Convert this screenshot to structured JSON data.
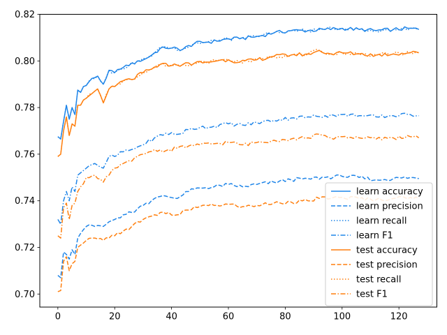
{
  "chart_data": {
    "type": "line",
    "title": "",
    "xlabel": "",
    "ylabel": "",
    "xlim": [
      -6.35,
      133.35
    ],
    "ylim": [
      0.6944,
      0.82
    ],
    "xticks": [
      0,
      20,
      40,
      60,
      80,
      100,
      120
    ],
    "yticks": [
      0.7,
      0.72,
      0.74,
      0.76,
      0.78,
      0.8,
      0.82
    ],
    "ytick_labels": [
      "0.70",
      "0.72",
      "0.74",
      "0.76",
      "0.78",
      "0.80",
      "0.82"
    ],
    "grid": false,
    "legend_position": "lower-right",
    "x_start": 0,
    "x_end": 127,
    "series": [
      {
        "name": "learn accuracy",
        "color": "#1f85e8",
        "dash": "solid",
        "anchors": [
          [
            0,
            0.7675
          ],
          [
            1,
            0.7665
          ],
          [
            2,
            0.774
          ],
          [
            3,
            0.781
          ],
          [
            4,
            0.775
          ],
          [
            5,
            0.78
          ],
          [
            6,
            0.777
          ],
          [
            7,
            0.7875
          ],
          [
            8,
            0.7865
          ],
          [
            9,
            0.789
          ],
          [
            10,
            0.7895
          ],
          [
            12,
            0.7925
          ],
          [
            14,
            0.7935
          ],
          [
            16,
            0.79
          ],
          [
            18,
            0.796
          ],
          [
            20,
            0.795
          ],
          [
            22,
            0.7965
          ],
          [
            25,
            0.798
          ],
          [
            28,
            0.8
          ],
          [
            31,
            0.801
          ],
          [
            34,
            0.8035
          ],
          [
            37,
            0.806
          ],
          [
            40,
            0.8055
          ],
          [
            44,
            0.805
          ],
          [
            48,
            0.8075
          ],
          [
            52,
            0.808
          ],
          [
            56,
            0.8085
          ],
          [
            60,
            0.8095
          ],
          [
            64,
            0.8095
          ],
          [
            70,
            0.8105
          ],
          [
            76,
            0.812
          ],
          [
            82,
            0.813
          ],
          [
            88,
            0.813
          ],
          [
            94,
            0.8135
          ],
          [
            100,
            0.814
          ],
          [
            106,
            0.8135
          ],
          [
            112,
            0.813
          ],
          [
            118,
            0.8135
          ],
          [
            124,
            0.814
          ],
          [
            127,
            0.8135
          ]
        ]
      },
      {
        "name": "learn precision",
        "color": "#1f85e8",
        "dash": "dashed",
        "anchors": [
          [
            0,
            0.708
          ],
          [
            1,
            0.707
          ],
          [
            2,
            0.718
          ],
          [
            3,
            0.717
          ],
          [
            4,
            0.715
          ],
          [
            5,
            0.719
          ],
          [
            6,
            0.717
          ],
          [
            7,
            0.724
          ],
          [
            8,
            0.726
          ],
          [
            10,
            0.729
          ],
          [
            13,
            0.729
          ],
          [
            16,
            0.729
          ],
          [
            18,
            0.731
          ],
          [
            20,
            0.732
          ],
          [
            23,
            0.734
          ],
          [
            26,
            0.735
          ],
          [
            30,
            0.738
          ],
          [
            34,
            0.741
          ],
          [
            38,
            0.742
          ],
          [
            42,
            0.741
          ],
          [
            46,
            0.744
          ],
          [
            50,
            0.7455
          ],
          [
            55,
            0.746
          ],
          [
            60,
            0.747
          ],
          [
            65,
            0.746
          ],
          [
            70,
            0.747
          ],
          [
            76,
            0.748
          ],
          [
            82,
            0.749
          ],
          [
            88,
            0.7495
          ],
          [
            94,
            0.75
          ],
          [
            100,
            0.7505
          ],
          [
            106,
            0.75
          ],
          [
            112,
            0.749
          ],
          [
            118,
            0.7495
          ],
          [
            124,
            0.75
          ],
          [
            127,
            0.7495
          ]
        ]
      },
      {
        "name": "learn recall",
        "color": "#1f85e8",
        "dash": "dotted",
        "anchors": [
          [
            0,
            0.7675
          ],
          [
            1,
            0.7665
          ],
          [
            2,
            0.774
          ],
          [
            3,
            0.781
          ],
          [
            4,
            0.775
          ],
          [
            5,
            0.78
          ],
          [
            6,
            0.777
          ],
          [
            7,
            0.7875
          ],
          [
            8,
            0.7865
          ],
          [
            9,
            0.789
          ],
          [
            10,
            0.7895
          ],
          [
            12,
            0.7925
          ],
          [
            14,
            0.7935
          ],
          [
            16,
            0.79
          ],
          [
            18,
            0.796
          ],
          [
            20,
            0.795
          ],
          [
            22,
            0.7965
          ],
          [
            25,
            0.798
          ],
          [
            28,
            0.8
          ],
          [
            31,
            0.801
          ],
          [
            34,
            0.8035
          ],
          [
            37,
            0.806
          ],
          [
            40,
            0.8055
          ],
          [
            44,
            0.805
          ],
          [
            48,
            0.8075
          ],
          [
            52,
            0.808
          ],
          [
            56,
            0.8085
          ],
          [
            60,
            0.8095
          ],
          [
            64,
            0.8095
          ],
          [
            70,
            0.8105
          ],
          [
            76,
            0.812
          ],
          [
            82,
            0.813
          ],
          [
            88,
            0.813
          ],
          [
            94,
            0.8135
          ],
          [
            100,
            0.814
          ],
          [
            106,
            0.8135
          ],
          [
            112,
            0.813
          ],
          [
            118,
            0.8135
          ],
          [
            124,
            0.814
          ],
          [
            127,
            0.8135
          ]
        ]
      },
      {
        "name": "learn F1",
        "color": "#1f85e8",
        "dash": "dashdot",
        "anchors": [
          [
            0,
            0.732
          ],
          [
            1,
            0.73
          ],
          [
            2,
            0.74
          ],
          [
            3,
            0.744
          ],
          [
            4,
            0.74
          ],
          [
            5,
            0.746
          ],
          [
            6,
            0.744
          ],
          [
            7,
            0.751
          ],
          [
            8,
            0.752
          ],
          [
            10,
            0.754
          ],
          [
            13,
            0.756
          ],
          [
            16,
            0.754
          ],
          [
            18,
            0.759
          ],
          [
            20,
            0.759
          ],
          [
            23,
            0.761
          ],
          [
            26,
            0.762
          ],
          [
            30,
            0.764
          ],
          [
            34,
            0.767
          ],
          [
            38,
            0.769
          ],
          [
            42,
            0.7685
          ],
          [
            46,
            0.7705
          ],
          [
            50,
            0.7715
          ],
          [
            55,
            0.772
          ],
          [
            60,
            0.773
          ],
          [
            65,
            0.7725
          ],
          [
            70,
            0.7735
          ],
          [
            76,
            0.7745
          ],
          [
            82,
            0.7755
          ],
          [
            88,
            0.776
          ],
          [
            94,
            0.7765
          ],
          [
            100,
            0.777
          ],
          [
            106,
            0.7765
          ],
          [
            112,
            0.776
          ],
          [
            118,
            0.7765
          ],
          [
            124,
            0.777
          ],
          [
            127,
            0.7765
          ]
        ]
      },
      {
        "name": "test accuracy",
        "color": "#ff7f0e",
        "dash": "solid",
        "anchors": [
          [
            0,
            0.759
          ],
          [
            1,
            0.76
          ],
          [
            2,
            0.77
          ],
          [
            3,
            0.776
          ],
          [
            4,
            0.768
          ],
          [
            5,
            0.773
          ],
          [
            6,
            0.772
          ],
          [
            7,
            0.781
          ],
          [
            8,
            0.781
          ],
          [
            10,
            0.784
          ],
          [
            12,
            0.786
          ],
          [
            14,
            0.788
          ],
          [
            16,
            0.782
          ],
          [
            18,
            0.788
          ],
          [
            20,
            0.789
          ],
          [
            23,
            0.7915
          ],
          [
            26,
            0.792
          ],
          [
            30,
            0.795
          ],
          [
            33,
            0.7965
          ],
          [
            36,
            0.7985
          ],
          [
            40,
            0.798
          ],
          [
            44,
            0.7985
          ],
          [
            48,
            0.799
          ],
          [
            52,
            0.7995
          ],
          [
            56,
            0.8
          ],
          [
            60,
            0.8005
          ],
          [
            64,
            0.7995
          ],
          [
            70,
            0.8005
          ],
          [
            76,
            0.802
          ],
          [
            82,
            0.8025
          ],
          [
            88,
            0.803
          ],
          [
            92,
            0.8045
          ],
          [
            96,
            0.803
          ],
          [
            100,
            0.8035
          ],
          [
            106,
            0.803
          ],
          [
            112,
            0.8025
          ],
          [
            118,
            0.803
          ],
          [
            124,
            0.8035
          ],
          [
            127,
            0.8035
          ]
        ]
      },
      {
        "name": "test precision",
        "color": "#ff7f0e",
        "dash": "dashed",
        "anchors": [
          [
            0,
            0.701
          ],
          [
            1,
            0.7015
          ],
          [
            2,
            0.714
          ],
          [
            3,
            0.716
          ],
          [
            4,
            0.71
          ],
          [
            5,
            0.713
          ],
          [
            6,
            0.714
          ],
          [
            7,
            0.72
          ],
          [
            8,
            0.721
          ],
          [
            10,
            0.723
          ],
          [
            13,
            0.724
          ],
          [
            16,
            0.723
          ],
          [
            18,
            0.724
          ],
          [
            20,
            0.725
          ],
          [
            23,
            0.727
          ],
          [
            26,
            0.729
          ],
          [
            30,
            0.732
          ],
          [
            34,
            0.734
          ],
          [
            38,
            0.7345
          ],
          [
            42,
            0.734
          ],
          [
            46,
            0.736
          ],
          [
            50,
            0.7375
          ],
          [
            55,
            0.738
          ],
          [
            60,
            0.7385
          ],
          [
            65,
            0.7375
          ],
          [
            70,
            0.738
          ],
          [
            76,
            0.739
          ],
          [
            82,
            0.7395
          ],
          [
            88,
            0.74
          ],
          [
            92,
            0.741
          ],
          [
            96,
            0.741
          ],
          [
            100,
            0.7415
          ],
          [
            106,
            0.741
          ],
          [
            112,
            0.7405
          ],
          [
            118,
            0.741
          ],
          [
            124,
            0.7415
          ],
          [
            127,
            0.741
          ]
        ]
      },
      {
        "name": "test recall",
        "color": "#ff7f0e",
        "dash": "dotted",
        "anchors": [
          [
            0,
            0.759
          ],
          [
            1,
            0.76
          ],
          [
            2,
            0.77
          ],
          [
            3,
            0.776
          ],
          [
            4,
            0.768
          ],
          [
            5,
            0.773
          ],
          [
            6,
            0.772
          ],
          [
            7,
            0.781
          ],
          [
            8,
            0.781
          ],
          [
            10,
            0.784
          ],
          [
            12,
            0.786
          ],
          [
            14,
            0.788
          ],
          [
            16,
            0.782
          ],
          [
            18,
            0.788
          ],
          [
            20,
            0.789
          ],
          [
            23,
            0.7915
          ],
          [
            26,
            0.792
          ],
          [
            30,
            0.795
          ],
          [
            33,
            0.7965
          ],
          [
            36,
            0.7985
          ],
          [
            40,
            0.798
          ],
          [
            44,
            0.7985
          ],
          [
            48,
            0.799
          ],
          [
            52,
            0.7995
          ],
          [
            56,
            0.8
          ],
          [
            60,
            0.8005
          ],
          [
            64,
            0.7995
          ],
          [
            70,
            0.8005
          ],
          [
            76,
            0.802
          ],
          [
            82,
            0.8025
          ],
          [
            88,
            0.803
          ],
          [
            92,
            0.8045
          ],
          [
            96,
            0.803
          ],
          [
            100,
            0.8035
          ],
          [
            106,
            0.803
          ],
          [
            112,
            0.8025
          ],
          [
            118,
            0.803
          ],
          [
            124,
            0.8035
          ],
          [
            127,
            0.8035
          ]
        ]
      },
      {
        "name": "test F1",
        "color": "#ff7f0e",
        "dash": "dashdot",
        "anchors": [
          [
            0,
            0.725
          ],
          [
            1,
            0.724
          ],
          [
            2,
            0.737
          ],
          [
            3,
            0.739
          ],
          [
            4,
            0.732
          ],
          [
            5,
            0.738
          ],
          [
            6,
            0.739
          ],
          [
            7,
            0.744
          ],
          [
            8,
            0.746
          ],
          [
            10,
            0.75
          ],
          [
            13,
            0.751
          ],
          [
            16,
            0.748
          ],
          [
            18,
            0.751
          ],
          [
            20,
            0.754
          ],
          [
            23,
            0.756
          ],
          [
            26,
            0.757
          ],
          [
            30,
            0.76
          ],
          [
            34,
            0.762
          ],
          [
            38,
            0.7615
          ],
          [
            42,
            0.7625
          ],
          [
            46,
            0.7635
          ],
          [
            50,
            0.764
          ],
          [
            55,
            0.7645
          ],
          [
            60,
            0.765
          ],
          [
            65,
            0.764
          ],
          [
            70,
            0.765
          ],
          [
            76,
            0.766
          ],
          [
            82,
            0.7665
          ],
          [
            88,
            0.767
          ],
          [
            92,
            0.7685
          ],
          [
            96,
            0.767
          ],
          [
            100,
            0.7675
          ],
          [
            106,
            0.767
          ],
          [
            112,
            0.7665
          ],
          [
            118,
            0.767
          ],
          [
            124,
            0.7675
          ],
          [
            127,
            0.767
          ]
        ]
      }
    ]
  }
}
